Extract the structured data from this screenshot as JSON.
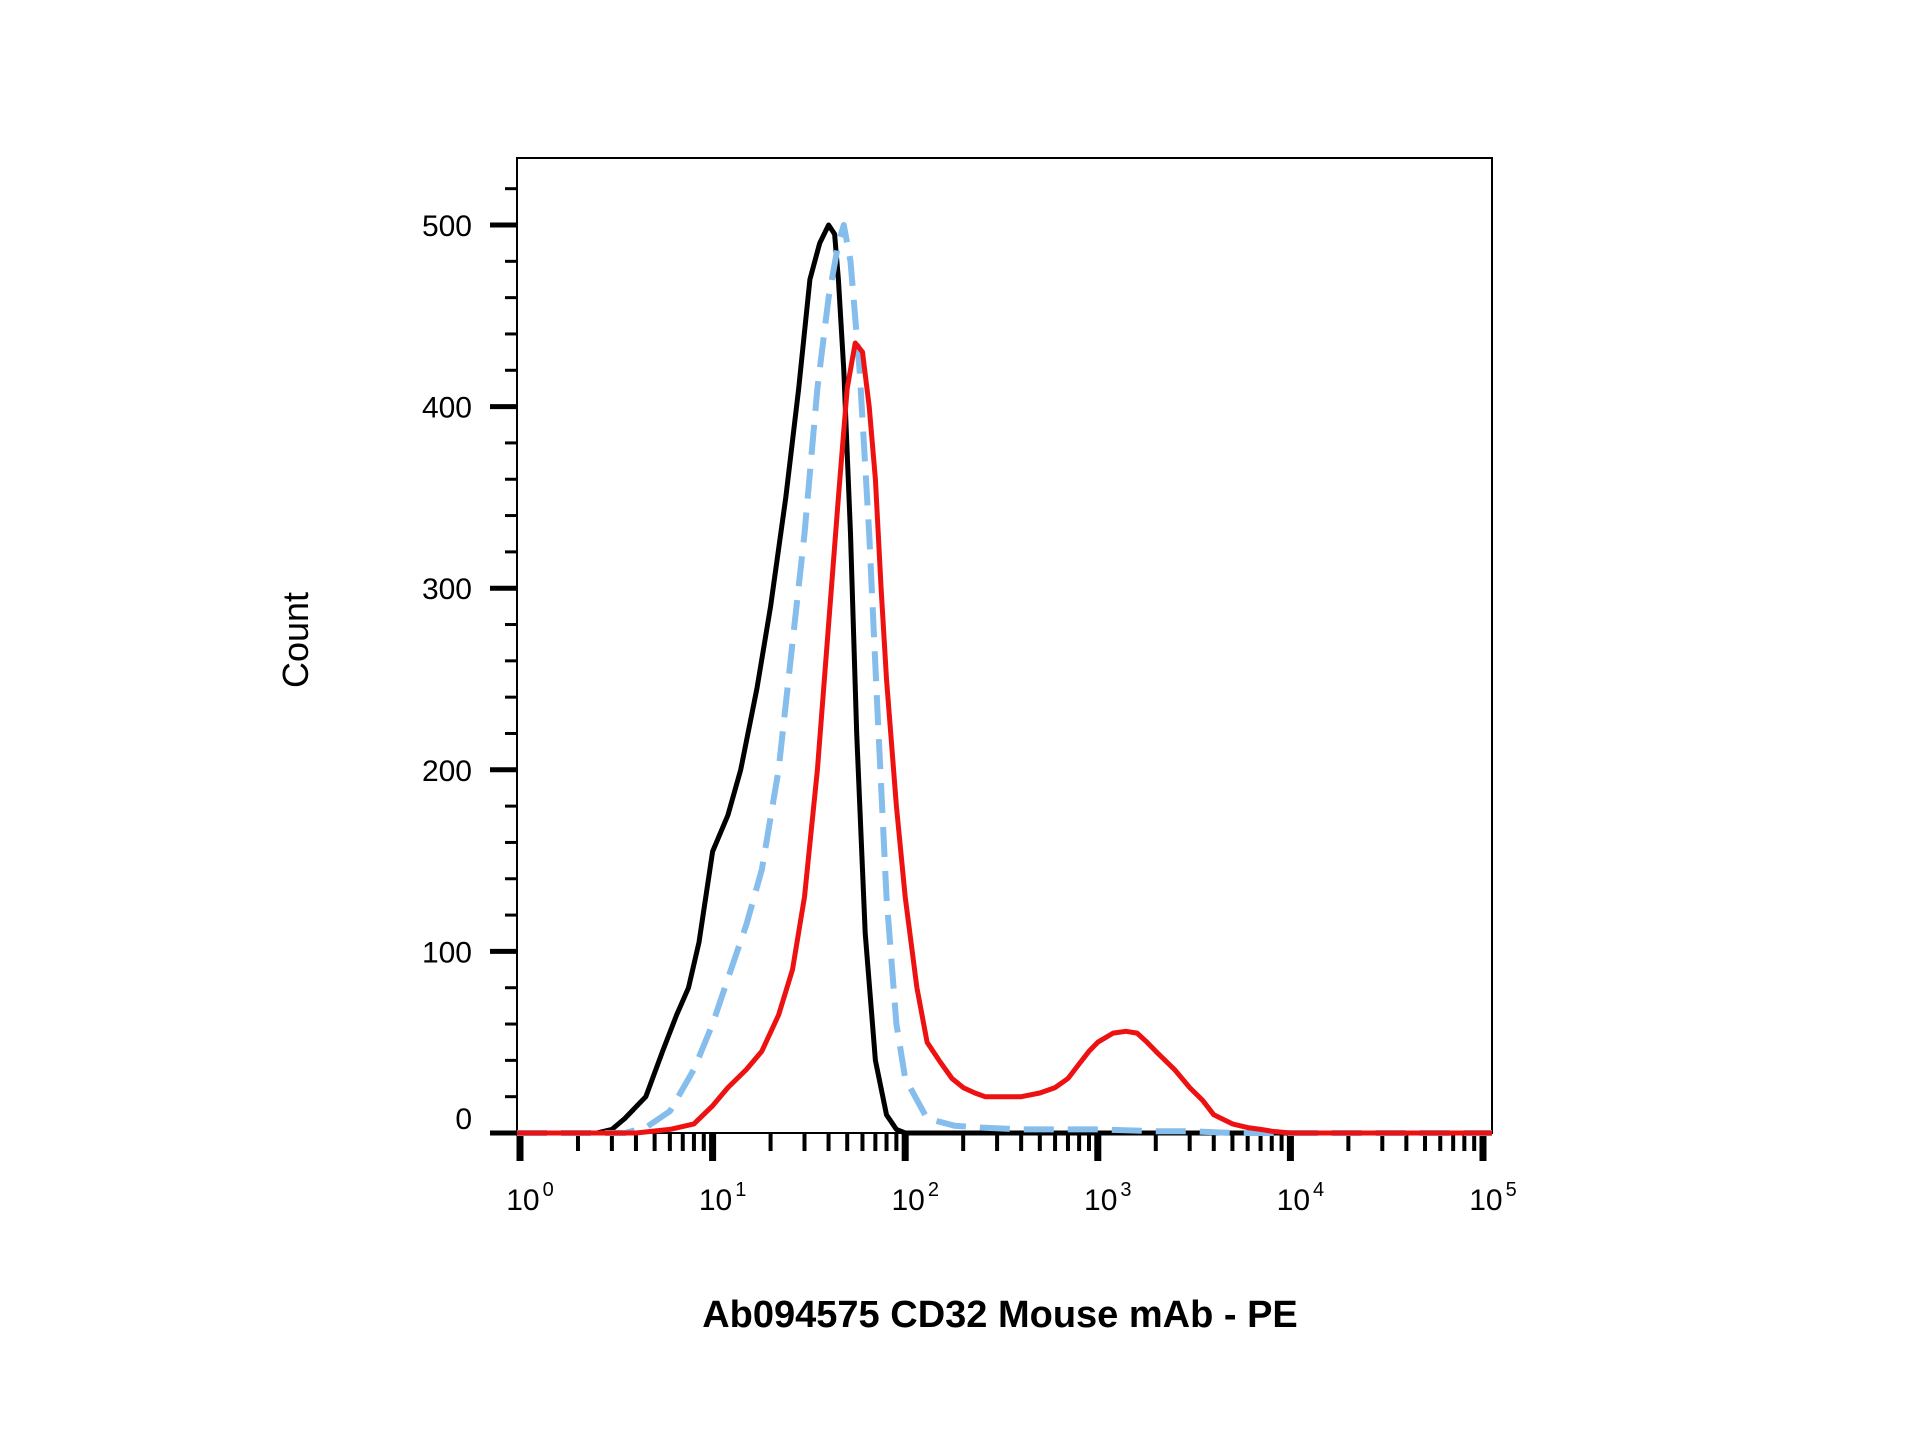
{
  "chart_data": {
    "type": "line",
    "title": "",
    "xlabel": "Ab094575 CD32 Mouse mAb - PE",
    "ylabel": "Count",
    "x_scale": "log",
    "xlim": [
      0.6,
      150000
    ],
    "ylim": [
      0,
      535
    ],
    "x_ticks": [
      {
        "value": 1,
        "base": "10",
        "exp": "0"
      },
      {
        "value": 10,
        "base": "10",
        "exp": "1"
      },
      {
        "value": 100,
        "base": "10",
        "exp": "2"
      },
      {
        "value": 1000,
        "base": "10",
        "exp": "3"
      },
      {
        "value": 10000,
        "base": "10",
        "exp": "4"
      },
      {
        "value": 100000,
        "base": "10",
        "exp": "5"
      }
    ],
    "y_ticks": [
      0,
      100,
      200,
      300,
      400,
      500
    ],
    "grid": false,
    "legend": "none",
    "series": [
      {
        "color": "#000000",
        "style": "solid",
        "x": [
          0.6,
          2.5,
          3.0,
          3.5,
          4.5,
          5.5,
          6.5,
          7.5,
          8.5,
          10,
          12,
          14,
          17,
          20,
          24,
          28,
          32,
          36,
          40,
          43,
          45,
          48,
          52,
          56,
          62,
          70,
          80,
          90,
          100,
          130,
          1000,
          10000,
          150000
        ],
        "y": [
          0,
          0,
          2,
          8,
          20,
          45,
          65,
          80,
          105,
          155,
          175,
          200,
          245,
          290,
          350,
          410,
          470,
          490,
          500,
          495,
          470,
          420,
          330,
          220,
          110,
          40,
          10,
          2,
          0,
          0,
          0,
          0,
          0
        ]
      },
      {
        "color": "#85bdec",
        "style": "dashed",
        "x": [
          0.6,
          3.5,
          4.5,
          6,
          8,
          10,
          12,
          15,
          18,
          22,
          26,
          30,
          35,
          40,
          45,
          48,
          52,
          58,
          65,
          72,
          80,
          90,
          100,
          130,
          180,
          250,
          400,
          700,
          1000,
          2000,
          3000,
          5000,
          150000
        ],
        "y": [
          0,
          0,
          3,
          12,
          35,
          60,
          85,
          115,
          145,
          200,
          270,
          330,
          410,
          460,
          490,
          500,
          480,
          420,
          330,
          230,
          130,
          60,
          30,
          8,
          4,
          3,
          2,
          2,
          2,
          1,
          1,
          0,
          0
        ]
      },
      {
        "color": "#ee1111",
        "style": "solid",
        "x": [
          0.6,
          4,
          6,
          8,
          10,
          12,
          15,
          18,
          22,
          26,
          30,
          35,
          40,
          45,
          50,
          55,
          60,
          65,
          70,
          75,
          80,
          90,
          100,
          115,
          130,
          150,
          175,
          200,
          230,
          260,
          300,
          400,
          500,
          600,
          700,
          800,
          900,
          1000,
          1200,
          1400,
          1600,
          1800,
          2000,
          2500,
          3000,
          3500,
          4000,
          5000,
          6000,
          7000,
          8000,
          10000,
          150000
        ],
        "y": [
          0,
          0,
          2,
          5,
          15,
          25,
          35,
          45,
          65,
          90,
          130,
          200,
          280,
          350,
          410,
          435,
          430,
          400,
          360,
          300,
          250,
          180,
          130,
          80,
          50,
          40,
          30,
          25,
          22,
          20,
          20,
          20,
          22,
          25,
          30,
          38,
          45,
          50,
          55,
          56,
          55,
          50,
          45,
          35,
          25,
          18,
          10,
          5,
          3,
          2,
          1,
          0,
          0
        ]
      }
    ]
  }
}
